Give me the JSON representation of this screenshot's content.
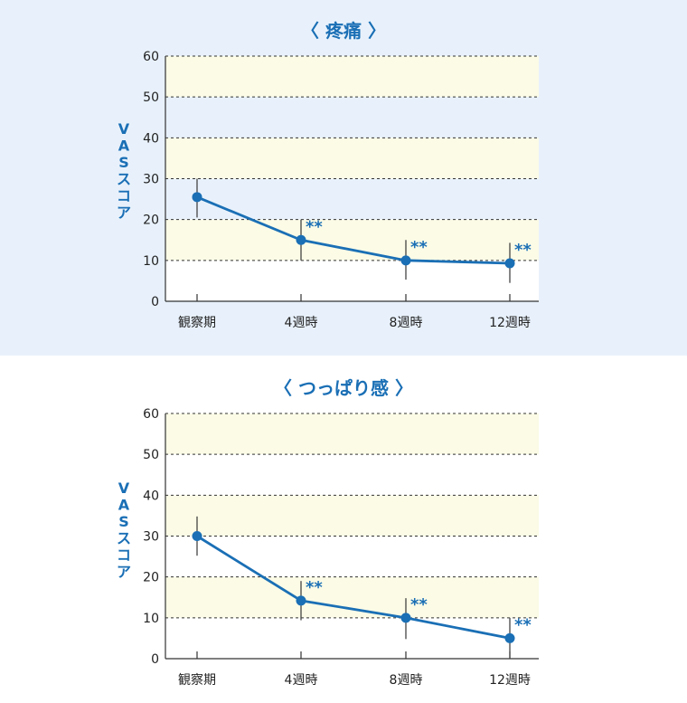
{
  "colors": {
    "accent": "#1a6fb5",
    "band": "#fbfbe6",
    "panel_bg": "#e8f1fb"
  },
  "chart_data": [
    {
      "type": "line",
      "title": "〈 疼痛 〉",
      "ylabel": "VASスコア",
      "categories": [
        "観察期",
        "4週時",
        "8週時",
        "12週時"
      ],
      "values": [
        25.5,
        15,
        10,
        9.3
      ],
      "error_low": [
        20.5,
        10,
        5.3,
        4.5
      ],
      "error_high": [
        30,
        20,
        15,
        14.3
      ],
      "significance": [
        "",
        "**",
        "**",
        "**"
      ],
      "ylim": [
        0,
        60
      ],
      "yticks": [
        0,
        10,
        20,
        30,
        40,
        50,
        60
      ],
      "grid": "horizontal-dashed"
    },
    {
      "type": "line",
      "title": "〈 つっぱり感 〉",
      "ylabel": "VASスコア",
      "categories": [
        "観察期",
        "4週時",
        "8週時",
        "12週時"
      ],
      "values": [
        30,
        14.2,
        10,
        5
      ],
      "error_low": [
        25.2,
        9.4,
        4.8,
        0
      ],
      "error_high": [
        34.8,
        19,
        14.8,
        10
      ],
      "significance": [
        "",
        "**",
        "**",
        "**"
      ],
      "ylim": [
        0,
        60
      ],
      "yticks": [
        0,
        10,
        20,
        30,
        40,
        50,
        60
      ],
      "grid": "horizontal-dashed"
    }
  ]
}
